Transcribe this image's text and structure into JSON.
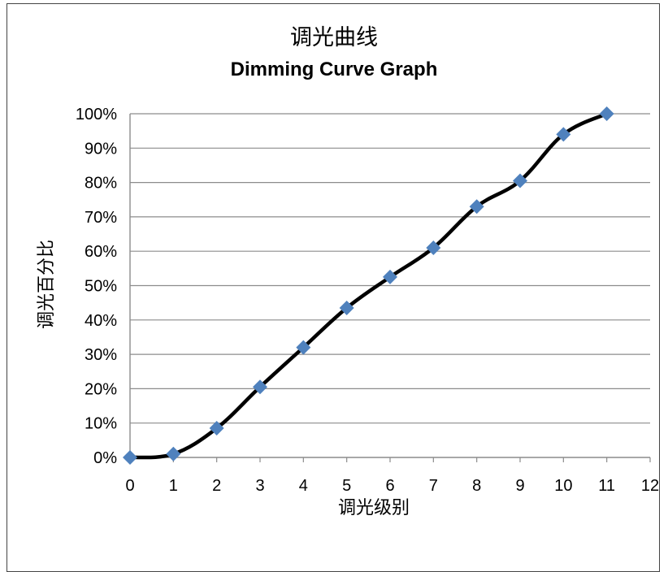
{
  "chart_data": {
    "type": "line",
    "title": "调光曲线",
    "subtitle": "Dimming Curve Graph",
    "xlabel": "调光级别",
    "ylabel": "调光百分比",
    "xlim": [
      0,
      12
    ],
    "ylim": [
      0,
      100
    ],
    "x_ticks": [
      "0",
      "1",
      "2",
      "3",
      "4",
      "5",
      "6",
      "7",
      "8",
      "9",
      "10",
      "11",
      "12"
    ],
    "y_ticks": [
      "0%",
      "10%",
      "20%",
      "30%",
      "40%",
      "50%",
      "60%",
      "70%",
      "80%",
      "90%",
      "100%"
    ],
    "grid": "horizontal",
    "legend": "none",
    "series": [
      {
        "x": [
          0,
          1,
          2,
          3,
          4,
          5,
          6,
          7,
          8,
          9,
          10,
          11
        ],
        "values": [
          0,
          1,
          8.5,
          20.5,
          32,
          43.5,
          52.5,
          61,
          73,
          80.5,
          94,
          100
        ],
        "line_color": "#000000",
        "marker_color": "#4f81bd",
        "marker": "diamond",
        "smooth": true
      }
    ]
  }
}
